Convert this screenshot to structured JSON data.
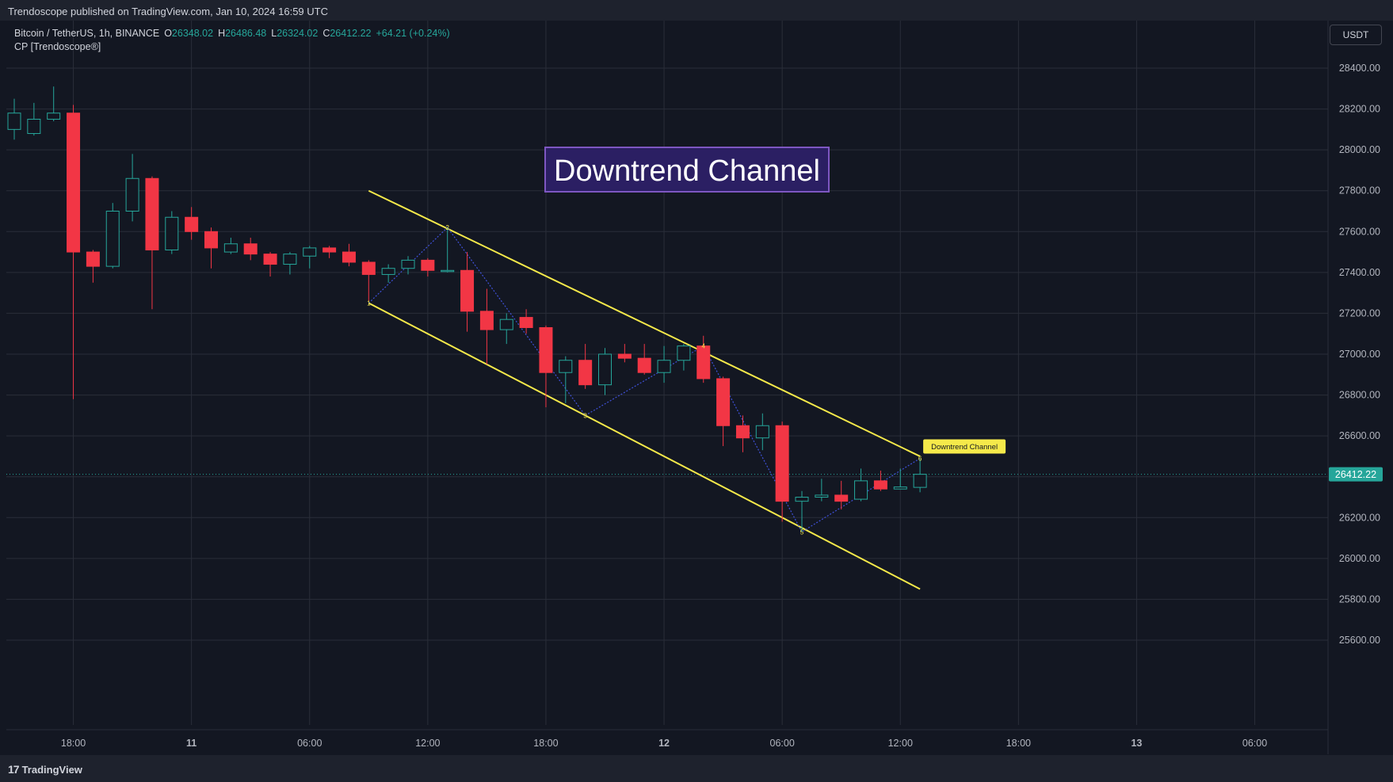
{
  "header": {
    "published_text": "Trendoscope published on TradingView.com, Jan 10, 2024 16:59 UTC"
  },
  "legend": {
    "symbol": "Bitcoin / TetherUS, 1h, BINANCE",
    "open_label": "O",
    "open": "26348.02",
    "high_label": "H",
    "high": "26486.48",
    "low_label": "L",
    "low": "26324.02",
    "close_label": "C",
    "close": "26412.22",
    "change": "+64.21 (+0.24%)",
    "indicator": "CP [Trendoscope®]"
  },
  "currency_button": "USDT",
  "footer": {
    "logo_mark": "17",
    "logo_text": "TradingView"
  },
  "colors": {
    "background": "#131722",
    "up": "#26a69a",
    "down": "#f23645",
    "channel": "#f5e94a",
    "zigzag": "#3f51d9",
    "title_bg": "#2b1f63",
    "title_border": "#7e57c2"
  },
  "chart_data": {
    "type": "candlestick",
    "title": "Downtrend Channel",
    "ylim": [
      25500,
      28500
    ],
    "y_ticks": [
      "25600.00",
      "25800.00",
      "26000.00",
      "26200.00",
      "26400.00",
      "26600.00",
      "26800.00",
      "27000.00",
      "27200.00",
      "27400.00",
      "27600.00",
      "27800.00",
      "28000.00",
      "28200.00",
      "28400.00"
    ],
    "x_ticks": [
      "18:00",
      "11",
      "06:00",
      "12:00",
      "18:00",
      "12",
      "06:00",
      "12:00",
      "18:00",
      "13",
      "06:00"
    ],
    "x_tick_bold": [
      false,
      true,
      false,
      false,
      false,
      true,
      false,
      false,
      false,
      true,
      false
    ],
    "last_price": "26412.22",
    "candles": [
      {
        "o": 28100,
        "h": 28250,
        "l": 28050,
        "c": 28180
      },
      {
        "o": 28080,
        "h": 28230,
        "l": 28070,
        "c": 28150
      },
      {
        "o": 28150,
        "h": 28310,
        "l": 28140,
        "c": 28180
      },
      {
        "o": 28180,
        "h": 28220,
        "l": 26780,
        "c": 27500
      },
      {
        "o": 27500,
        "h": 27510,
        "l": 27350,
        "c": 27430
      },
      {
        "o": 27430,
        "h": 27740,
        "l": 27420,
        "c": 27700
      },
      {
        "o": 27700,
        "h": 27980,
        "l": 27650,
        "c": 27860
      },
      {
        "o": 27860,
        "h": 27870,
        "l": 27220,
        "c": 27510
      },
      {
        "o": 27510,
        "h": 27700,
        "l": 27490,
        "c": 27670
      },
      {
        "o": 27670,
        "h": 27720,
        "l": 27560,
        "c": 27600
      },
      {
        "o": 27600,
        "h": 27620,
        "l": 27420,
        "c": 27520
      },
      {
        "o": 27500,
        "h": 27570,
        "l": 27490,
        "c": 27540
      },
      {
        "o": 27540,
        "h": 27570,
        "l": 27460,
        "c": 27490
      },
      {
        "o": 27490,
        "h": 27500,
        "l": 27380,
        "c": 27440
      },
      {
        "o": 27440,
        "h": 27500,
        "l": 27390,
        "c": 27490
      },
      {
        "o": 27480,
        "h": 27530,
        "l": 27420,
        "c": 27520
      },
      {
        "o": 27520,
        "h": 27530,
        "l": 27470,
        "c": 27500
      },
      {
        "o": 27500,
        "h": 27540,
        "l": 27430,
        "c": 27450
      },
      {
        "o": 27450,
        "h": 27460,
        "l": 27260,
        "c": 27390
      },
      {
        "o": 27390,
        "h": 27440,
        "l": 27350,
        "c": 27420
      },
      {
        "o": 27420,
        "h": 27480,
        "l": 27390,
        "c": 27460
      },
      {
        "o": 27460,
        "h": 27470,
        "l": 27380,
        "c": 27410
      },
      {
        "o": 27410,
        "h": 27620,
        "l": 27400,
        "c": 27410
      },
      {
        "o": 27410,
        "h": 27500,
        "l": 27110,
        "c": 27210
      },
      {
        "o": 27210,
        "h": 27320,
        "l": 26950,
        "c": 27120
      },
      {
        "o": 27120,
        "h": 27200,
        "l": 27050,
        "c": 27170
      },
      {
        "o": 27180,
        "h": 27220,
        "l": 27100,
        "c": 27130
      },
      {
        "o": 27130,
        "h": 27140,
        "l": 26740,
        "c": 26910
      },
      {
        "o": 26910,
        "h": 26990,
        "l": 26760,
        "c": 26970
      },
      {
        "o": 26970,
        "h": 27050,
        "l": 26830,
        "c": 26850
      },
      {
        "o": 26850,
        "h": 27030,
        "l": 26800,
        "c": 27000
      },
      {
        "o": 27000,
        "h": 27050,
        "l": 26960,
        "c": 26980
      },
      {
        "o": 26980,
        "h": 27050,
        "l": 26900,
        "c": 26910
      },
      {
        "o": 26910,
        "h": 27040,
        "l": 26860,
        "c": 26970
      },
      {
        "o": 26970,
        "h": 27050,
        "l": 26920,
        "c": 27040
      },
      {
        "o": 27040,
        "h": 27090,
        "l": 26860,
        "c": 26880
      },
      {
        "o": 26880,
        "h": 26890,
        "l": 26550,
        "c": 26650
      },
      {
        "o": 26650,
        "h": 26700,
        "l": 26520,
        "c": 26590
      },
      {
        "o": 26590,
        "h": 26710,
        "l": 26530,
        "c": 26650
      },
      {
        "o": 26650,
        "h": 26670,
        "l": 26180,
        "c": 26280
      },
      {
        "o": 26280,
        "h": 26330,
        "l": 26130,
        "c": 26300
      },
      {
        "o": 26300,
        "h": 26390,
        "l": 26280,
        "c": 26310
      },
      {
        "o": 26310,
        "h": 26380,
        "l": 26240,
        "c": 26280
      },
      {
        "o": 26290,
        "h": 26440,
        "l": 26280,
        "c": 26380
      },
      {
        "o": 26380,
        "h": 26430,
        "l": 26330,
        "c": 26340
      },
      {
        "o": 26340,
        "h": 26440,
        "l": 26340,
        "c": 26350
      },
      {
        "o": 26348,
        "h": 26486,
        "l": 26324,
        "c": 26412
      }
    ],
    "channel_upper": [
      {
        "i": 18,
        "p": 27800
      },
      {
        "i": 46,
        "p": 26500
      }
    ],
    "channel_lower": [
      {
        "i": 18,
        "p": 27250
      },
      {
        "i": 46,
        "p": 25850
      }
    ],
    "zigzag": [
      {
        "i": 18,
        "p": 27250,
        "label": "1"
      },
      {
        "i": 22,
        "p": 27620,
        "label": "2"
      },
      {
        "i": 29,
        "p": 26700,
        "label": "3"
      },
      {
        "i": 35,
        "p": 27040,
        "label": "4"
      },
      {
        "i": 40,
        "p": 26130,
        "label": "5"
      },
      {
        "i": 46,
        "p": 26490,
        "label": "6"
      }
    ],
    "pattern_label": "Downtrend Channel"
  }
}
